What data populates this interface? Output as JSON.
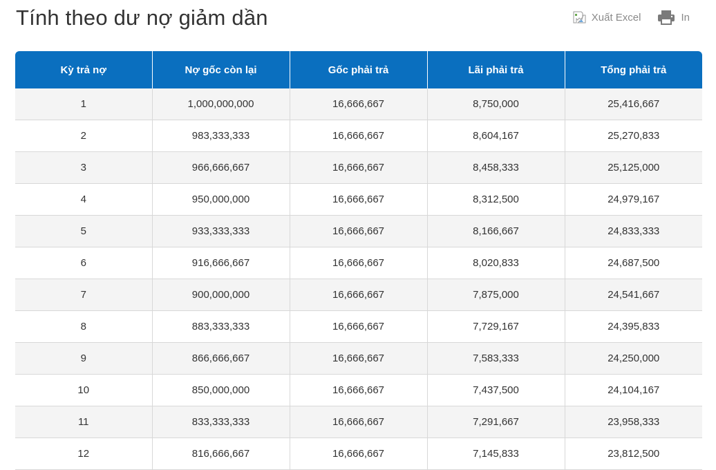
{
  "header": {
    "title": "Tính theo dư nợ giảm dần",
    "export_label": "Xuất Excel",
    "export_icon": "broken-image-icon",
    "print_label": "In",
    "print_icon": "printer-icon"
  },
  "colors": {
    "header_bg": "#0a6fbf",
    "row_alt": "#f4f4f4",
    "text": "#333333",
    "muted": "#8a8a8a"
  },
  "table": {
    "columns": [
      "Kỳ trả nợ",
      "Nợ gốc còn lại",
      "Gốc phải trả",
      "Lãi phải trả",
      "Tổng phải trả"
    ],
    "rows": [
      [
        "1",
        "1,000,000,000",
        "16,666,667",
        "8,750,000",
        "25,416,667"
      ],
      [
        "2",
        "983,333,333",
        "16,666,667",
        "8,604,167",
        "25,270,833"
      ],
      [
        "3",
        "966,666,667",
        "16,666,667",
        "8,458,333",
        "25,125,000"
      ],
      [
        "4",
        "950,000,000",
        "16,666,667",
        "8,312,500",
        "24,979,167"
      ],
      [
        "5",
        "933,333,333",
        "16,666,667",
        "8,166,667",
        "24,833,333"
      ],
      [
        "6",
        "916,666,667",
        "16,666,667",
        "8,020,833",
        "24,687,500"
      ],
      [
        "7",
        "900,000,000",
        "16,666,667",
        "7,875,000",
        "24,541,667"
      ],
      [
        "8",
        "883,333,333",
        "16,666,667",
        "7,729,167",
        "24,395,833"
      ],
      [
        "9",
        "866,666,667",
        "16,666,667",
        "7,583,333",
        "24,250,000"
      ],
      [
        "10",
        "850,000,000",
        "16,666,667",
        "7,437,500",
        "24,104,167"
      ],
      [
        "11",
        "833,333,333",
        "16,666,667",
        "7,291,667",
        "23,958,333"
      ],
      [
        "12",
        "816,666,667",
        "16,666,667",
        "7,145,833",
        "23,812,500"
      ]
    ]
  }
}
